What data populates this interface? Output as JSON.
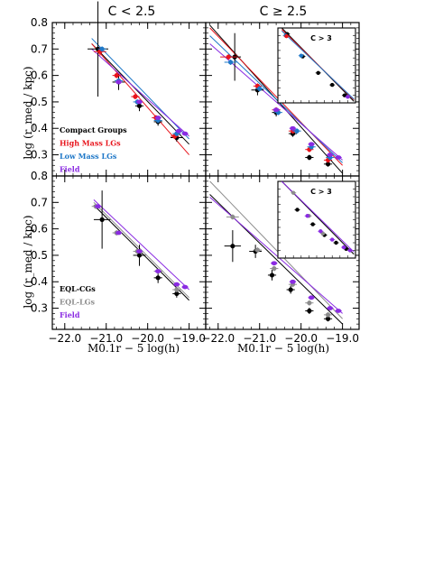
{
  "panel_titles": [
    "C < 2.5",
    "C ≥ 2.5"
  ],
  "ylabel": "log (r_med / kpc)",
  "xlabel": "M0.1r − 5 log(h)",
  "y_ticks": [
    "0.8",
    "0.7",
    "0.6",
    "0.5",
    "0.4",
    "0.3"
  ],
  "x_ticks": [
    "−22.0",
    "−21.0",
    "−20.0",
    "−19.0"
  ],
  "colors": {
    "black": "#000000",
    "red": "#e8141c",
    "blue": "#1f78c8",
    "purple": "#8a2be2",
    "gray": "#8c8c8c"
  },
  "chart_data": [
    {
      "type": "scatter",
      "title": "C < 2.5",
      "xlim": [
        -22.3,
        -18.6
      ],
      "ylim": [
        0.22,
        0.8
      ],
      "legend": "bottom-left",
      "legend_labels": [
        "Compact Groups",
        "High Mass LGs",
        "Low Mass LGs",
        "Field"
      ],
      "series": [
        {
          "name": "Compact Groups",
          "color": "black",
          "x": [
            -21.2,
            -20.7,
            -20.2,
            -19.75,
            -19.3
          ],
          "y": [
            0.7,
            0.575,
            0.485,
            0.425,
            0.365
          ],
          "xerr": [
            0.25,
            0.15,
            0.1,
            0.1,
            0.15
          ],
          "yerr": [
            0.18,
            0.03,
            0.02,
            0.015,
            0.015
          ],
          "fit": [
            [
              -21.35,
              0.72
            ],
            [
              -19.0,
              0.34
            ]
          ]
        },
        {
          "name": "High Mass LGs",
          "color": "red",
          "x": [
            -21.15,
            -20.75,
            -20.3,
            -19.8,
            -19.35
          ],
          "y": [
            0.69,
            0.6,
            0.52,
            0.44,
            0.37
          ],
          "xerr": [
            0.15,
            0.1,
            0.1,
            0.1,
            0.1
          ],
          "yerr": [
            0.015,
            0.01,
            0.01,
            0.01,
            0.01
          ],
          "fit": [
            [
              -21.35,
              0.72
            ],
            [
              -19.0,
              0.3
            ]
          ]
        },
        {
          "name": "Low Mass LGs",
          "color": "blue",
          "x": [
            -21.1,
            -20.7,
            -20.25,
            -19.75,
            -19.3
          ],
          "y": [
            0.7,
            0.58,
            0.5,
            0.43,
            0.38
          ],
          "xerr": [
            0.1,
            0.1,
            0.1,
            0.1,
            0.1
          ],
          "yerr": [
            0.01,
            0.01,
            0.01,
            0.01,
            0.01
          ],
          "fit": [
            [
              -21.35,
              0.74
            ],
            [
              -19.0,
              0.36
            ]
          ]
        },
        {
          "name": "Field",
          "color": "purple",
          "x": [
            -20.7,
            -20.2,
            -19.75,
            -19.25,
            -19.1
          ],
          "y": [
            0.575,
            0.5,
            0.44,
            0.39,
            0.38
          ],
          "xerr": [
            0.08,
            0.08,
            0.08,
            0.08,
            0.08
          ],
          "yerr": [
            0.005,
            0.005,
            0.005,
            0.005,
            0.005
          ],
          "fit": [
            [
              -21.35,
              0.7
            ],
            [
              -19.0,
              0.37
            ]
          ]
        }
      ]
    },
    {
      "type": "scatter",
      "title": "C ≥ 2.5",
      "xlim": [
        -22.3,
        -18.6
      ],
      "ylim": [
        0.22,
        0.8
      ],
      "series": [
        {
          "name": "Compact Groups",
          "color": "black",
          "x": [
            -21.6,
            -21.05,
            -20.6,
            -20.2,
            -19.8,
            -19.35
          ],
          "y": [
            0.67,
            0.545,
            0.46,
            0.38,
            0.29,
            0.265
          ],
          "xerr": [
            0.15,
            0.15,
            0.1,
            0.1,
            0.1,
            0.1
          ],
          "yerr": [
            0.09,
            0.02,
            0.015,
            0.012,
            0.01,
            0.01
          ],
          "fit": [
            [
              -22.2,
              0.79
            ],
            [
              -19.0,
              0.23
            ]
          ]
        },
        {
          "name": "High Mass LGs",
          "color": "red",
          "x": [
            -21.75,
            -21.05,
            -20.6,
            -20.2,
            -19.8,
            -19.35
          ],
          "y": [
            0.67,
            0.56,
            0.47,
            0.39,
            0.32,
            0.28
          ],
          "xerr": [
            0.2,
            0.1,
            0.1,
            0.1,
            0.1,
            0.1
          ],
          "yerr": [
            0.01,
            0.01,
            0.01,
            0.01,
            0.01,
            0.01
          ],
          "fit": [
            [
              -22.2,
              0.78
            ],
            [
              -19.0,
              0.26
            ]
          ]
        },
        {
          "name": "Low Mass LGs",
          "color": "blue",
          "x": [
            -21.7,
            -21.0,
            -20.55,
            -20.1,
            -19.75,
            -19.3
          ],
          "y": [
            0.65,
            0.55,
            0.46,
            0.39,
            0.33,
            0.29
          ],
          "xerr": [
            0.15,
            0.1,
            0.1,
            0.1,
            0.1,
            0.1
          ],
          "yerr": [
            0.01,
            0.01,
            0.01,
            0.01,
            0.01,
            0.01
          ],
          "fit": [
            [
              -22.2,
              0.75
            ],
            [
              -19.0,
              0.27
            ]
          ]
        },
        {
          "name": "Field",
          "color": "purple",
          "x": [
            -20.6,
            -20.2,
            -19.75,
            -19.3,
            -19.1
          ],
          "y": [
            0.47,
            0.4,
            0.34,
            0.3,
            0.29
          ],
          "xerr": [
            0.08,
            0.08,
            0.08,
            0.08,
            0.08
          ],
          "yerr": [
            0.005,
            0.005,
            0.005,
            0.005,
            0.005
          ],
          "fit": [
            [
              -22.2,
              0.72
            ],
            [
              -19.0,
              0.28
            ]
          ]
        }
      ]
    },
    {
      "type": "scatter",
      "title": "",
      "xlim": [
        -22.3,
        -18.6
      ],
      "ylim": [
        0.22,
        0.8
      ],
      "legend": "bottom-left",
      "legend_labels": [
        "EQL-CGs",
        "EQL-LGs",
        "Field"
      ],
      "series": [
        {
          "name": "EQL-CGs",
          "color": "black",
          "x": [
            -21.1,
            -20.2,
            -19.75,
            -19.3
          ],
          "y": [
            0.635,
            0.5,
            0.415,
            0.355
          ],
          "xerr": [
            0.2,
            0.15,
            0.1,
            0.1
          ],
          "yerr": [
            0.11,
            0.04,
            0.02,
            0.015
          ],
          "fit": [
            [
              -21.3,
              0.69
            ],
            [
              -19.0,
              0.33
            ]
          ]
        },
        {
          "name": "EQL-LGs",
          "color": "gray",
          "x": [
            -21.25,
            -20.75,
            -20.25,
            -19.75,
            -19.3
          ],
          "y": [
            0.685,
            0.585,
            0.515,
            0.44,
            0.37
          ],
          "xerr": [
            0.1,
            0.1,
            0.1,
            0.1,
            0.1
          ],
          "yerr": [
            0.01,
            0.01,
            0.01,
            0.01,
            0.01
          ],
          "fit": [
            [
              -21.3,
              0.7
            ],
            [
              -19.0,
              0.34
            ]
          ]
        },
        {
          "name": "Field",
          "color": "purple",
          "x": [
            -21.2,
            -20.7,
            -20.2,
            -19.75,
            -19.3,
            -19.1
          ],
          "y": [
            0.685,
            0.585,
            0.515,
            0.44,
            0.39,
            0.38
          ],
          "xerr": [
            0.08,
            0.08,
            0.08,
            0.08,
            0.08,
            0.08
          ],
          "yerr": [
            0.005,
            0.005,
            0.005,
            0.005,
            0.005,
            0.005
          ],
          "fit": [
            [
              -21.3,
              0.71
            ],
            [
              -19.0,
              0.37
            ]
          ]
        }
      ]
    },
    {
      "type": "scatter",
      "title": "",
      "xlim": [
        -22.3,
        -18.6
      ],
      "ylim": [
        0.22,
        0.8
      ],
      "series": [
        {
          "name": "EQL-CGs",
          "color": "black",
          "x": [
            -21.65,
            -21.1,
            -20.7,
            -20.25,
            -19.8,
            -19.35
          ],
          "y": [
            0.535,
            0.515,
            0.425,
            0.37,
            0.29,
            0.26
          ],
          "xerr": [
            0.2,
            0.15,
            0.1,
            0.1,
            0.1,
            0.1
          ],
          "yerr": [
            0.06,
            0.025,
            0.02,
            0.015,
            0.012,
            0.01
          ],
          "fit": [
            [
              -22.2,
              0.73
            ],
            [
              -19.0,
              0.24
            ]
          ]
        },
        {
          "name": "EQL-LGs",
          "color": "gray",
          "x": [
            -21.65,
            -21.05,
            -20.65,
            -20.2,
            -19.8,
            -19.35
          ],
          "y": [
            0.645,
            0.52,
            0.45,
            0.39,
            0.32,
            0.275
          ],
          "xerr": [
            0.15,
            0.1,
            0.1,
            0.1,
            0.1,
            0.1
          ],
          "yerr": [
            0.01,
            0.01,
            0.01,
            0.01,
            0.01,
            0.01
          ],
          "fit": [
            [
              -22.2,
              0.78
            ],
            [
              -19.0,
              0.26
            ]
          ]
        },
        {
          "name": "Field",
          "color": "purple",
          "x": [
            -20.65,
            -20.2,
            -19.75,
            -19.3,
            -19.1
          ],
          "y": [
            0.47,
            0.4,
            0.34,
            0.3,
            0.29
          ],
          "xerr": [
            0.08,
            0.08,
            0.08,
            0.08,
            0.08
          ],
          "yerr": [
            0.005,
            0.005,
            0.005,
            0.005,
            0.005
          ],
          "fit": [
            [
              -22.2,
              0.72
            ],
            [
              -19.0,
              0.28
            ]
          ]
        }
      ]
    }
  ],
  "insets": [
    {
      "title": "C > 3",
      "panel": 1,
      "series": [
        {
          "color": "black",
          "x": [
            0.12,
            0.32,
            0.52,
            0.7,
            0.86
          ],
          "y": [
            0.92,
            0.62,
            0.4,
            0.24,
            0.1
          ]
        },
        {
          "color": "purple",
          "x": [
            0.9
          ],
          "y": [
            0.08
          ]
        },
        {
          "color": "blue",
          "x": [
            0.1,
            0.3
          ],
          "y": [
            0.9,
            0.63
          ]
        },
        {
          "color": "red",
          "x": [
            0.11
          ],
          "y": [
            0.89
          ]
        }
      ],
      "fits": [
        {
          "color": "black",
          "p": [
            [
              0.05,
              1.0
            ],
            [
              0.98,
              0.02
            ]
          ]
        },
        {
          "color": "red",
          "p": [
            [
              0.05,
              0.98
            ],
            [
              0.98,
              0.04
            ]
          ]
        },
        {
          "color": "blue",
          "p": [
            [
              0.05,
              0.96
            ],
            [
              0.98,
              0.05
            ]
          ]
        }
      ]
    },
    {
      "title": "C > 3",
      "panel": 3,
      "series": [
        {
          "color": "black",
          "x": [
            0.25,
            0.45,
            0.6,
            0.75,
            0.88
          ],
          "y": [
            0.63,
            0.44,
            0.3,
            0.2,
            0.12
          ]
        },
        {
          "color": "gray",
          "x": [
            0.2,
            0.4,
            0.58
          ],
          "y": [
            0.85,
            0.55,
            0.32
          ]
        },
        {
          "color": "purple",
          "x": [
            0.38,
            0.55,
            0.7,
            0.85,
            0.93
          ],
          "y": [
            0.55,
            0.35,
            0.24,
            0.14,
            0.1
          ]
        }
      ],
      "fits": [
        {
          "color": "black",
          "p": [
            [
              0.05,
              1.0
            ],
            [
              0.98,
              0.05
            ]
          ]
        },
        {
          "color": "purple",
          "p": [
            [
              0.05,
              1.0
            ],
            [
              0.98,
              0.08
            ]
          ]
        }
      ]
    }
  ]
}
